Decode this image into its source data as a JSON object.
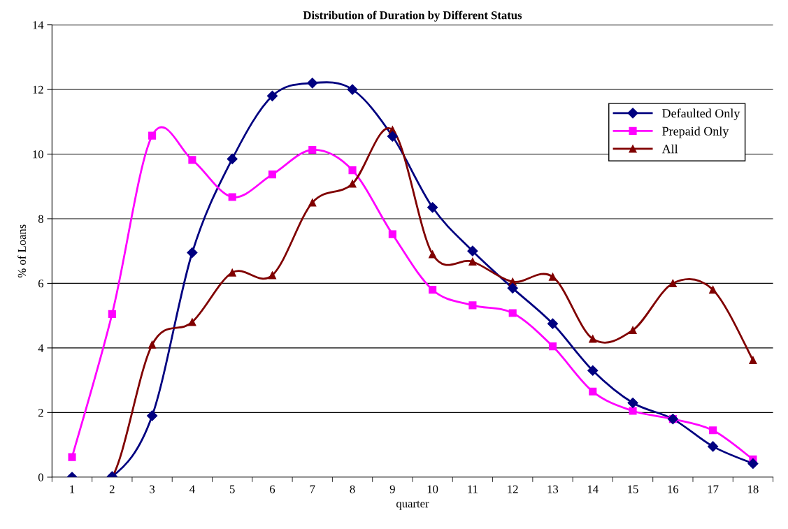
{
  "chart_data": {
    "type": "line",
    "title": "Distribution of Duration by Different Status",
    "xlabel": "quarter",
    "ylabel": "% of Loans",
    "categories": [
      "1",
      "2",
      "3",
      "4",
      "5",
      "6",
      "7",
      "8",
      "9",
      "10",
      "11",
      "12",
      "13",
      "14",
      "15",
      "16",
      "17",
      "18"
    ],
    "series": [
      {
        "name": "Defaulted Only",
        "color": "#000080",
        "marker": "diamond",
        "values": [
          0,
          0.02,
          1.9,
          6.95,
          9.85,
          11.8,
          12.2,
          12.0,
          10.55,
          8.35,
          7.0,
          5.85,
          4.75,
          3.3,
          2.3,
          1.8,
          0.95,
          0.42
        ]
      },
      {
        "name": "Prepaid Only",
        "color": "#ff00ff",
        "marker": "square",
        "values": [
          0.62,
          5.05,
          10.57,
          9.82,
          8.67,
          9.37,
          10.13,
          9.5,
          7.52,
          5.8,
          5.32,
          5.08,
          4.05,
          2.65,
          2.05,
          1.8,
          1.45,
          0.55
        ]
      },
      {
        "name": "All",
        "color": "#800000",
        "marker": "triangle",
        "values": [
          0,
          0,
          4.1,
          4.8,
          6.33,
          6.25,
          8.5,
          9.08,
          10.75,
          6.9,
          6.67,
          6.05,
          6.2,
          4.28,
          4.55,
          6.0,
          5.8,
          3.62
        ]
      }
    ],
    "ylim": [
      0,
      14
    ],
    "yticks": [
      0,
      2,
      4,
      6,
      8,
      10,
      12,
      14
    ],
    "grid": "y",
    "legend": "top right",
    "line_style": "solid"
  }
}
